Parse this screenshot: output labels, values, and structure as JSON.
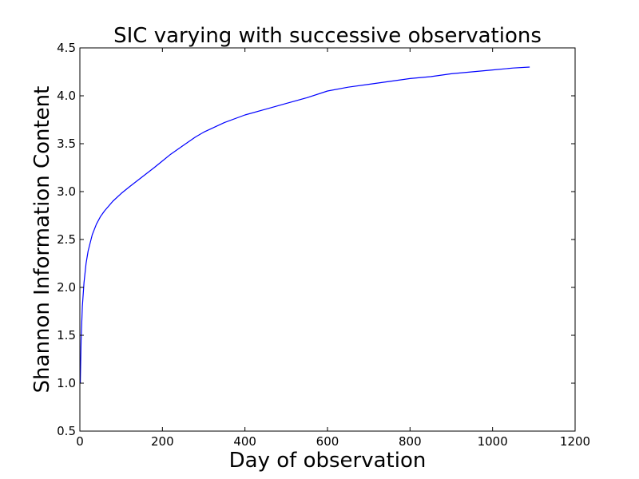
{
  "chart_data": {
    "type": "line",
    "title": "SIC varying with successive observations",
    "xlabel": "Day of observation",
    "ylabel": "Shannon Information Content",
    "xlim": [
      0,
      1200
    ],
    "ylim": [
      0.5,
      4.5
    ],
    "xticks": [
      0,
      200,
      400,
      600,
      800,
      1000,
      1200
    ],
    "yticks": [
      0.5,
      1.0,
      1.5,
      2.0,
      2.5,
      3.0,
      3.5,
      4.0,
      4.5
    ],
    "xtick_labels": [
      "0",
      "200",
      "400",
      "600",
      "800",
      "1000",
      "1200"
    ],
    "ytick_labels": [
      "0.5",
      "1.0",
      "1.5",
      "2.0",
      "2.5",
      "3.0",
      "3.5",
      "4.0",
      "4.5"
    ],
    "grid": false,
    "series": [
      {
        "color": "#0000ff",
        "x": [
          1,
          3,
          6,
          10,
          15,
          20,
          30,
          40,
          50,
          60,
          80,
          100,
          120,
          150,
          180,
          200,
          220,
          250,
          280,
          300,
          350,
          400,
          450,
          500,
          550,
          600,
          650,
          700,
          750,
          800,
          850,
          900,
          950,
          1000,
          1050,
          1090
        ],
        "y": [
          1.0,
          1.45,
          1.8,
          2.05,
          2.25,
          2.38,
          2.55,
          2.66,
          2.74,
          2.8,
          2.9,
          2.98,
          3.05,
          3.15,
          3.25,
          3.32,
          3.39,
          3.48,
          3.57,
          3.62,
          3.72,
          3.8,
          3.86,
          3.92,
          3.98,
          4.05,
          4.09,
          4.12,
          4.15,
          4.18,
          4.2,
          4.23,
          4.25,
          4.27,
          4.29,
          4.3
        ]
      }
    ]
  }
}
